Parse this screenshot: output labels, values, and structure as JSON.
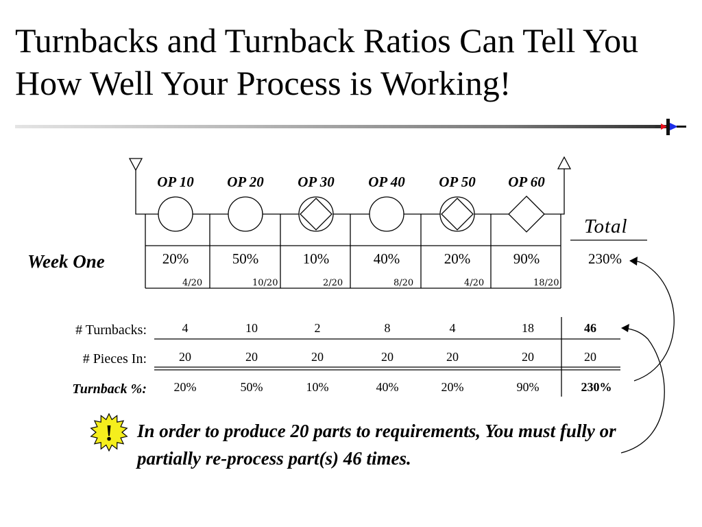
{
  "slide": {
    "title": "Turnbacks and Turnback Ratios Can Tell You How Well Your Process is Working!"
  },
  "process": {
    "operations": [
      {
        "name": "OP 10",
        "symbol": "circle",
        "percent": "20%",
        "ratio": "4/20"
      },
      {
        "name": "OP 20",
        "symbol": "circle",
        "percent": "50%",
        "ratio": "10/20"
      },
      {
        "name": "OP 30",
        "symbol": "circle-diamond",
        "percent": "10%",
        "ratio": "2/20"
      },
      {
        "name": "OP 40",
        "symbol": "circle",
        "percent": "40%",
        "ratio": "8/20"
      },
      {
        "name": "OP 50",
        "symbol": "circle-diamond",
        "percent": "20%",
        "ratio": "4/20"
      },
      {
        "name": "OP 60",
        "symbol": "diamond",
        "percent": "90%",
        "ratio": "18/20"
      }
    ],
    "week_label": "Week One",
    "total_label": "Total",
    "total_value": "230%"
  },
  "table": {
    "rows": [
      {
        "label": "# Turnbacks:",
        "values": [
          "4",
          "10",
          "2",
          "8",
          "4",
          "18"
        ],
        "total": "46"
      },
      {
        "label": "# Pieces In:",
        "values": [
          "20",
          "20",
          "20",
          "20",
          "20",
          "20"
        ],
        "total": "20"
      },
      {
        "label": "Turnback %:",
        "values": [
          "20%",
          "50%",
          "10%",
          "40%",
          "20%",
          "90%"
        ],
        "total": "230%"
      }
    ]
  },
  "note": {
    "icon_text": "!",
    "text": "In order to produce 20 parts to requirements, You must fully or partially re-process part(s) 46 times."
  },
  "colors": {
    "warning_fill": "#f5ee1d",
    "marker_red": "#e8101c",
    "marker_blue": "#1c2ee8"
  }
}
